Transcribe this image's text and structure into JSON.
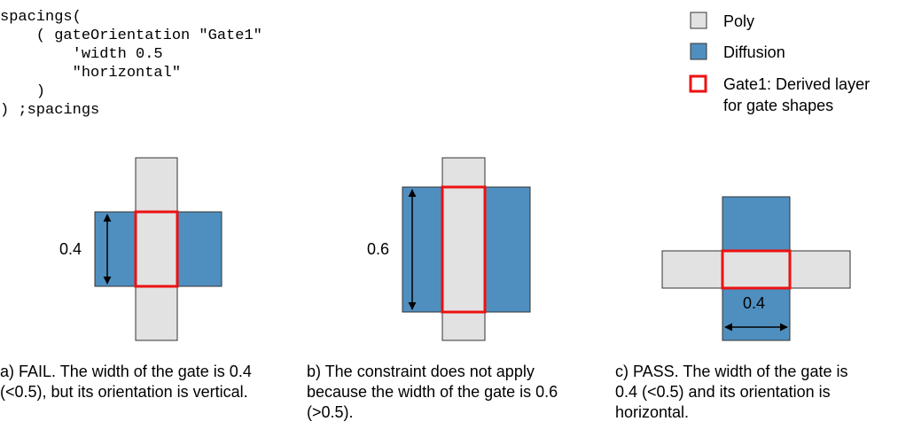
{
  "code": {
    "lines": [
      "spacings(",
      "    ( gateOrientation \"Gate1\"",
      "        'width 0.5",
      "        \"horizontal\"",
      "    )",
      ") ;spacings"
    ]
  },
  "legend": {
    "items": [
      {
        "label": "Poly",
        "color": "#e2e2e2"
      },
      {
        "label": "Diffusion",
        "color": "#4f8fc0"
      },
      {
        "label_lines": [
          "Gate1: Derived layer",
          "for gate shapes"
        ],
        "color": "#ee1111"
      }
    ]
  },
  "figures": [
    {
      "dimension_label": "0.4"
    },
    {
      "dimension_label": "0.6"
    },
    {
      "dimension_label": "0.4"
    }
  ],
  "captions": [
    {
      "lines": [
        "a) FAIL. The width of the gate is 0.4",
        "(<0.5), but its orientation is vertical."
      ]
    },
    {
      "lines": [
        "b) The constraint does not apply",
        "because the width of the gate is 0.6",
        "(>0.5)."
      ]
    },
    {
      "lines": [
        "c) PASS. The width of the gate is",
        "0.4 (<0.5) and its orientation is",
        "horizontal."
      ]
    }
  ],
  "colors": {
    "poly": "#e2e2e2",
    "diffusion": "#4f8fc0",
    "gate": "#ee1111",
    "outline": "#333333"
  }
}
